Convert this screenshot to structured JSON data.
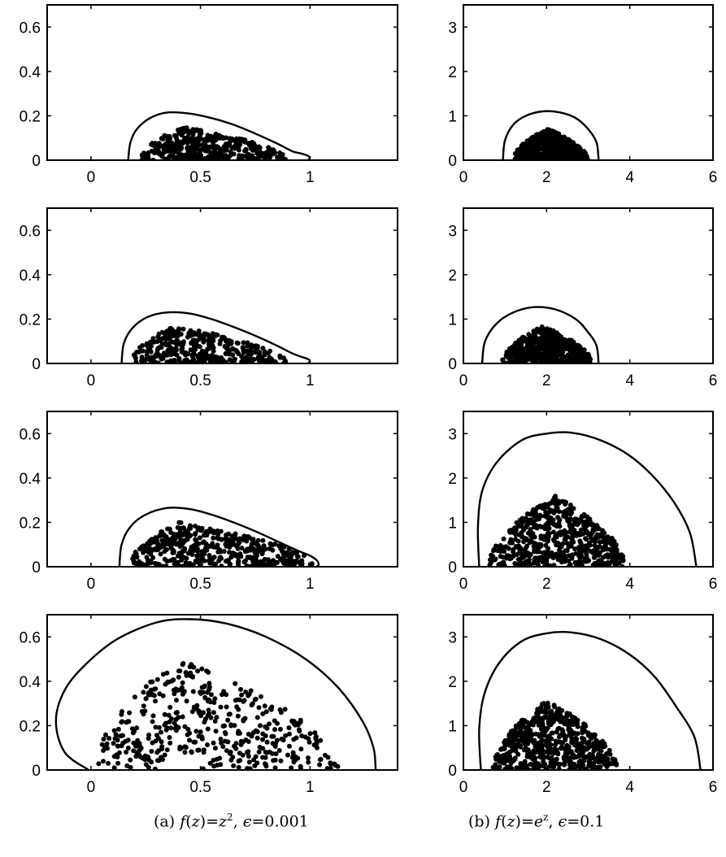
{
  "captions": {
    "a": {
      "tag": "(a)",
      "func_lhs": "f",
      "func_arg": "z",
      "func_rhs": "z",
      "func_exp": "2",
      "eps_symbol": "ϵ",
      "eps_value": "0.001"
    },
    "b": {
      "tag": "(b)",
      "func_lhs": "f",
      "func_arg": "z",
      "func_rhs": "e",
      "func_exp": "z",
      "eps_symbol": "ϵ",
      "eps_value": "0.1"
    }
  },
  "chart_data": [
    {
      "type": "scatter",
      "column": "a",
      "row": 1,
      "xlim": [
        -0.2,
        1.4
      ],
      "ylim": [
        0,
        0.7
      ],
      "xticks": [
        0,
        0.5,
        1
      ],
      "xtick_labels": [
        "0",
        "0.5",
        "1"
      ],
      "yticks": [
        0,
        0.2,
        0.4,
        0.6
      ],
      "ytick_labels": [
        "0",
        "0.2",
        "0.4",
        "0.6"
      ],
      "points": {
        "count": 400,
        "x_range": [
          0.22,
          0.9
        ],
        "y_max": 0.15,
        "peak_x": 0.42,
        "seed": 11
      },
      "boundary": [
        [
          0.17,
          0
        ],
        [
          0.18,
          0.08
        ],
        [
          0.21,
          0.14
        ],
        [
          0.27,
          0.19
        ],
        [
          0.35,
          0.215
        ],
        [
          0.45,
          0.21
        ],
        [
          0.55,
          0.19
        ],
        [
          0.65,
          0.16
        ],
        [
          0.75,
          0.12
        ],
        [
          0.85,
          0.075
        ],
        [
          0.92,
          0.04
        ],
        [
          0.96,
          0.03
        ],
        [
          0.99,
          0.02
        ],
        [
          1.0,
          0.01
        ],
        [
          0.99,
          0
        ]
      ]
    },
    {
      "type": "scatter",
      "column": "a",
      "row": 2,
      "xlim": [
        -0.2,
        1.4
      ],
      "ylim": [
        0,
        0.7
      ],
      "xticks": [
        0,
        0.5,
        1
      ],
      "xtick_labels": [
        "0",
        "0.5",
        "1"
      ],
      "yticks": [
        0,
        0.2,
        0.4,
        0.6
      ],
      "ytick_labels": [
        "0",
        "0.2",
        "0.4",
        "0.6"
      ],
      "points": {
        "count": 400,
        "x_range": [
          0.18,
          0.9
        ],
        "y_max": 0.17,
        "peak_x": 0.38,
        "seed": 23
      },
      "boundary": [
        [
          0.14,
          0
        ],
        [
          0.15,
          0.09
        ],
        [
          0.19,
          0.16
        ],
        [
          0.26,
          0.21
        ],
        [
          0.35,
          0.23
        ],
        [
          0.45,
          0.225
        ],
        [
          0.55,
          0.2
        ],
        [
          0.65,
          0.165
        ],
        [
          0.75,
          0.125
        ],
        [
          0.85,
          0.08
        ],
        [
          0.92,
          0.045
        ],
        [
          0.96,
          0.03
        ],
        [
          0.99,
          0.02
        ],
        [
          1.0,
          0.01
        ],
        [
          0.99,
          0
        ]
      ]
    },
    {
      "type": "scatter",
      "column": "a",
      "row": 3,
      "xlim": [
        -0.2,
        1.4
      ],
      "ylim": [
        0,
        0.7
      ],
      "xticks": [
        0,
        0.5,
        1
      ],
      "xtick_labels": [
        "0",
        "0.5",
        "1"
      ],
      "yticks": [
        0,
        0.2,
        0.4,
        0.6
      ],
      "ytick_labels": [
        "0",
        "0.2",
        "0.4",
        "0.6"
      ],
      "points": {
        "count": 450,
        "x_range": [
          0.17,
          1.03
        ],
        "y_max": 0.2,
        "peak_x": 0.4,
        "seed": 37
      },
      "boundary": [
        [
          0.13,
          0
        ],
        [
          0.14,
          0.1
        ],
        [
          0.18,
          0.18
        ],
        [
          0.25,
          0.235
        ],
        [
          0.35,
          0.265
        ],
        [
          0.45,
          0.26
        ],
        [
          0.55,
          0.235
        ],
        [
          0.65,
          0.2
        ],
        [
          0.75,
          0.16
        ],
        [
          0.85,
          0.115
        ],
        [
          0.95,
          0.07
        ],
        [
          1.0,
          0.05
        ],
        [
          1.03,
          0.03
        ],
        [
          1.04,
          0.01
        ],
        [
          1.03,
          0
        ]
      ]
    },
    {
      "type": "scatter",
      "column": "a",
      "row": 4,
      "xlim": [
        -0.2,
        1.4
      ],
      "ylim": [
        0,
        0.7
      ],
      "xticks": [
        0,
        0.5,
        1
      ],
      "xtick_labels": [
        "0",
        "0.5",
        "1"
      ],
      "yticks": [
        0,
        0.2,
        0.4,
        0.6
      ],
      "ytick_labels": [
        "0",
        "0.2",
        "0.4",
        "0.6"
      ],
      "points": {
        "count": 450,
        "x_range": [
          0.02,
          1.13
        ],
        "y_max": 0.5,
        "peak_x": 0.4,
        "seed": 53
      },
      "boundary": [
        [
          -0.01,
          0
        ],
        [
          -0.12,
          0.08
        ],
        [
          -0.16,
          0.22
        ],
        [
          -0.12,
          0.36
        ],
        [
          -0.02,
          0.48
        ],
        [
          0.12,
          0.59
        ],
        [
          0.3,
          0.665
        ],
        [
          0.45,
          0.68
        ],
        [
          0.62,
          0.66
        ],
        [
          0.8,
          0.6
        ],
        [
          0.98,
          0.5
        ],
        [
          1.13,
          0.37
        ],
        [
          1.24,
          0.22
        ],
        [
          1.29,
          0.1
        ],
        [
          1.3,
          0
        ]
      ]
    },
    {
      "type": "scatter",
      "column": "b",
      "row": 1,
      "xlim": [
        0,
        6
      ],
      "ylim": [
        0,
        3.5
      ],
      "xticks": [
        0,
        2,
        4,
        6
      ],
      "xtick_labels": [
        "0",
        "2",
        "4",
        "6"
      ],
      "yticks": [
        0,
        1,
        2,
        3
      ],
      "ytick_labels": [
        "0",
        "1",
        "2",
        "3"
      ],
      "points": {
        "count": 500,
        "x_range": [
          1.2,
          3.0
        ],
        "y_max": 0.72,
        "peak_x": 2.0,
        "seed": 71
      },
      "boundary": [
        [
          0.95,
          0
        ],
        [
          1.0,
          0.45
        ],
        [
          1.2,
          0.8
        ],
        [
          1.5,
          1.0
        ],
        [
          1.9,
          1.1
        ],
        [
          2.3,
          1.08
        ],
        [
          2.7,
          0.95
        ],
        [
          3.0,
          0.7
        ],
        [
          3.2,
          0.4
        ],
        [
          3.25,
          0
        ]
      ]
    },
    {
      "type": "scatter",
      "column": "b",
      "row": 2,
      "xlim": [
        0,
        6
      ],
      "ylim": [
        0,
        3.5
      ],
      "xticks": [
        0,
        2,
        4,
        6
      ],
      "xtick_labels": [
        "0",
        "2",
        "4",
        "6"
      ],
      "yticks": [
        0,
        1,
        2,
        3
      ],
      "ytick_labels": [
        "0",
        "1",
        "2",
        "3"
      ],
      "points": {
        "count": 500,
        "x_range": [
          0.9,
          3.1
        ],
        "y_max": 0.85,
        "peak_x": 1.9,
        "seed": 89
      },
      "boundary": [
        [
          0.45,
          0
        ],
        [
          0.52,
          0.5
        ],
        [
          0.8,
          0.9
        ],
        [
          1.2,
          1.15
        ],
        [
          1.7,
          1.27
        ],
        [
          2.2,
          1.22
        ],
        [
          2.7,
          1.0
        ],
        [
          3.0,
          0.7
        ],
        [
          3.2,
          0.4
        ],
        [
          3.25,
          0
        ]
      ]
    },
    {
      "type": "scatter",
      "column": "b",
      "row": 3,
      "xlim": [
        0,
        6
      ],
      "ylim": [
        0,
        3.5
      ],
      "xticks": [
        0,
        2,
        4,
        6
      ],
      "xtick_labels": [
        "0",
        "2",
        "4",
        "6"
      ],
      "yticks": [
        0,
        1,
        2,
        3
      ],
      "ytick_labels": [
        "0",
        "1",
        "2",
        "3"
      ],
      "points": {
        "count": 600,
        "x_range": [
          0.6,
          3.9
        ],
        "y_max": 1.6,
        "peak_x": 2.2,
        "seed": 97
      },
      "boundary": [
        [
          0.38,
          0
        ],
        [
          0.35,
          0.9
        ],
        [
          0.45,
          1.7
        ],
        [
          0.8,
          2.35
        ],
        [
          1.4,
          2.85
        ],
        [
          2.0,
          3.0
        ],
        [
          2.6,
          3.02
        ],
        [
          3.3,
          2.85
        ],
        [
          4.0,
          2.5
        ],
        [
          4.6,
          2.0
        ],
        [
          5.1,
          1.4
        ],
        [
          5.45,
          0.75
        ],
        [
          5.6,
          0
        ]
      ]
    },
    {
      "type": "scatter",
      "column": "b",
      "row": 4,
      "xlim": [
        0,
        6
      ],
      "ylim": [
        0,
        3.5
      ],
      "xticks": [
        0,
        2,
        4,
        6
      ],
      "xtick_labels": [
        "0",
        "2",
        "4",
        "6"
      ],
      "yticks": [
        0,
        1,
        2,
        3
      ],
      "ytick_labels": [
        "0",
        "1",
        "2",
        "3"
      ],
      "points": {
        "count": 600,
        "x_range": [
          0.7,
          3.7
        ],
        "y_max": 1.58,
        "peak_x": 2.0,
        "seed": 113
      },
      "boundary": [
        [
          0.42,
          0
        ],
        [
          0.38,
          0.9
        ],
        [
          0.5,
          1.7
        ],
        [
          0.85,
          2.4
        ],
        [
          1.4,
          2.9
        ],
        [
          2.0,
          3.08
        ],
        [
          2.6,
          3.1
        ],
        [
          3.3,
          2.95
        ],
        [
          4.0,
          2.6
        ],
        [
          4.6,
          2.1
        ],
        [
          5.1,
          1.45
        ],
        [
          5.55,
          0.75
        ],
        [
          5.7,
          0
        ]
      ]
    }
  ]
}
